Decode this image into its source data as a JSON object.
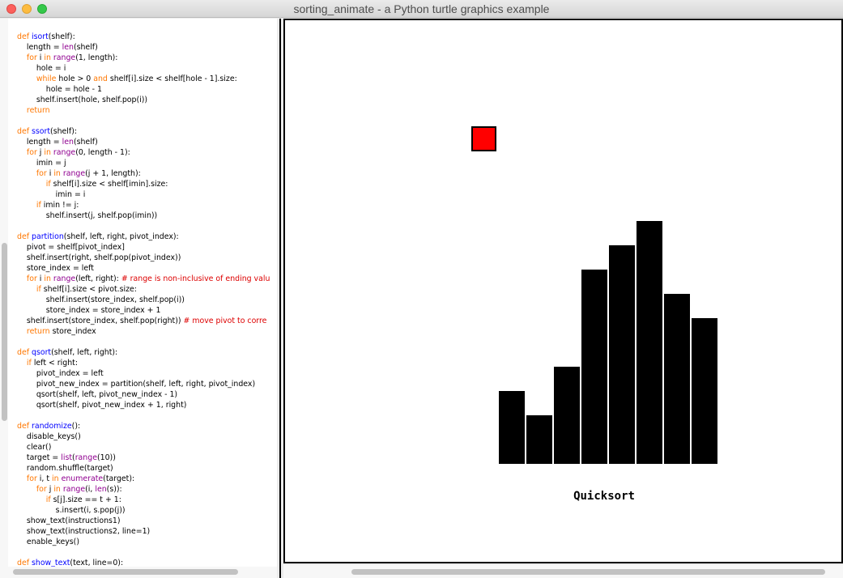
{
  "window": {
    "title": "sorting_animate - a Python turtle graphics example"
  },
  "code_lines": [
    [
      [
        "kw",
        "def "
      ],
      [
        "fn",
        "isort"
      ],
      [
        "",
        "(shelf):"
      ]
    ],
    [
      [
        "",
        "    length = "
      ],
      [
        "bi",
        "len"
      ],
      [
        "",
        "(shelf)"
      ]
    ],
    [
      [
        "kw",
        "    for "
      ],
      [
        "",
        "i "
      ],
      [
        "kw",
        "in "
      ],
      [
        "bi",
        "range"
      ],
      [
        "",
        "(1, length):"
      ]
    ],
    [
      [
        "",
        "        hole = i"
      ]
    ],
    [
      [
        "kw",
        "        while "
      ],
      [
        "",
        "hole > 0 "
      ],
      [
        "kw",
        "and "
      ],
      [
        "",
        "shelf[i].size < shelf[hole - 1].size:"
      ]
    ],
    [
      [
        "",
        "            hole = hole - 1"
      ]
    ],
    [
      [
        "",
        "        shelf.insert(hole, shelf.pop(i))"
      ]
    ],
    [
      [
        "kw",
        "    return"
      ]
    ],
    [
      [
        "",
        ""
      ]
    ],
    [
      [
        "kw",
        "def "
      ],
      [
        "fn",
        "ssort"
      ],
      [
        "",
        "(shelf):"
      ]
    ],
    [
      [
        "",
        "    length = "
      ],
      [
        "bi",
        "len"
      ],
      [
        "",
        "(shelf)"
      ]
    ],
    [
      [
        "kw",
        "    for "
      ],
      [
        "",
        "j "
      ],
      [
        "kw",
        "in "
      ],
      [
        "bi",
        "range"
      ],
      [
        "",
        "(0, length - 1):"
      ]
    ],
    [
      [
        "",
        "        imin = j"
      ]
    ],
    [
      [
        "kw",
        "        for "
      ],
      [
        "",
        "i "
      ],
      [
        "kw",
        "in "
      ],
      [
        "bi",
        "range"
      ],
      [
        "",
        "(j + 1, length):"
      ]
    ],
    [
      [
        "kw",
        "            if "
      ],
      [
        "",
        "shelf[i].size < shelf[imin].size:"
      ]
    ],
    [
      [
        "",
        "                imin = i"
      ]
    ],
    [
      [
        "kw",
        "        if "
      ],
      [
        "",
        "imin != j:"
      ]
    ],
    [
      [
        "",
        "            shelf.insert(j, shelf.pop(imin))"
      ]
    ],
    [
      [
        "",
        ""
      ]
    ],
    [
      [
        "kw",
        "def "
      ],
      [
        "fn",
        "partition"
      ],
      [
        "",
        "(shelf, left, right, pivot_index):"
      ]
    ],
    [
      [
        "",
        "    pivot = shelf[pivot_index]"
      ]
    ],
    [
      [
        "",
        "    shelf.insert(right, shelf.pop(pivot_index))"
      ]
    ],
    [
      [
        "",
        "    store_index = left"
      ]
    ],
    [
      [
        "kw",
        "    for "
      ],
      [
        "",
        "i "
      ],
      [
        "kw",
        "in "
      ],
      [
        "bi",
        "range"
      ],
      [
        "",
        "(left, right): "
      ],
      [
        "cm",
        "# range is non-inclusive of ending valu"
      ]
    ],
    [
      [
        "kw",
        "        if "
      ],
      [
        "",
        "shelf[i].size < pivot.size:"
      ]
    ],
    [
      [
        "",
        "            shelf.insert(store_index, shelf.pop(i))"
      ]
    ],
    [
      [
        "",
        "            store_index = store_index + 1"
      ]
    ],
    [
      [
        "",
        "    shelf.insert(store_index, shelf.pop(right)) "
      ],
      [
        "cm",
        "# move pivot to corre"
      ]
    ],
    [
      [
        "kw",
        "    return "
      ],
      [
        "",
        "store_index"
      ]
    ],
    [
      [
        "",
        ""
      ]
    ],
    [
      [
        "kw",
        "def "
      ],
      [
        "fn",
        "qsort"
      ],
      [
        "",
        "(shelf, left, right):"
      ]
    ],
    [
      [
        "kw",
        "    if "
      ],
      [
        "",
        "left < right:"
      ]
    ],
    [
      [
        "",
        "        pivot_index = left"
      ]
    ],
    [
      [
        "",
        "        pivot_new_index = partition(shelf, left, right, pivot_index)"
      ]
    ],
    [
      [
        "",
        "        qsort(shelf, left, pivot_new_index - 1)"
      ]
    ],
    [
      [
        "",
        "        qsort(shelf, pivot_new_index + 1, right)"
      ]
    ],
    [
      [
        "",
        ""
      ]
    ],
    [
      [
        "kw",
        "def "
      ],
      [
        "fn",
        "randomize"
      ],
      [
        "",
        "():"
      ]
    ],
    [
      [
        "",
        "    disable_keys()"
      ]
    ],
    [
      [
        "",
        "    clear()"
      ]
    ],
    [
      [
        "",
        "    target = "
      ],
      [
        "bi",
        "list"
      ],
      [
        "",
        "("
      ],
      [
        "bi",
        "range"
      ],
      [
        "",
        "(10))"
      ]
    ],
    [
      [
        "",
        "    random.shuffle(target)"
      ]
    ],
    [
      [
        "kw",
        "    for "
      ],
      [
        "",
        "i, t "
      ],
      [
        "kw",
        "in "
      ],
      [
        "bi",
        "enumerate"
      ],
      [
        "",
        "(target):"
      ]
    ],
    [
      [
        "kw",
        "        for "
      ],
      [
        "",
        "j "
      ],
      [
        "kw",
        "in "
      ],
      [
        "bi",
        "range"
      ],
      [
        "",
        "(i, "
      ],
      [
        "bi",
        "len"
      ],
      [
        "",
        "(s)):"
      ]
    ],
    [
      [
        "kw",
        "            if "
      ],
      [
        "",
        "s[j].size == t + 1:"
      ]
    ],
    [
      [
        "",
        "                s.insert(i, s.pop(j))"
      ]
    ],
    [
      [
        "",
        "    show_text(instructions1)"
      ]
    ],
    [
      [
        "",
        "    show_text(instructions2, line=1)"
      ]
    ],
    [
      [
        "",
        "    enable_keys()"
      ]
    ],
    [
      [
        "",
        ""
      ]
    ],
    [
      [
        "kw",
        "def "
      ],
      [
        "fn",
        "show_text"
      ],
      [
        "",
        "(text, line=0):"
      ]
    ]
  ],
  "canvas": {
    "label": "Quicksort",
    "block_size_values": [
      3,
      2,
      4,
      8,
      9,
      10,
      7,
      6
    ],
    "block_colors": [
      "#000000",
      "#000000",
      "#000000",
      "#000000",
      "#000000",
      "#000000",
      "#000000",
      "#000000"
    ],
    "highlighted_block_color": "#ff0000"
  }
}
